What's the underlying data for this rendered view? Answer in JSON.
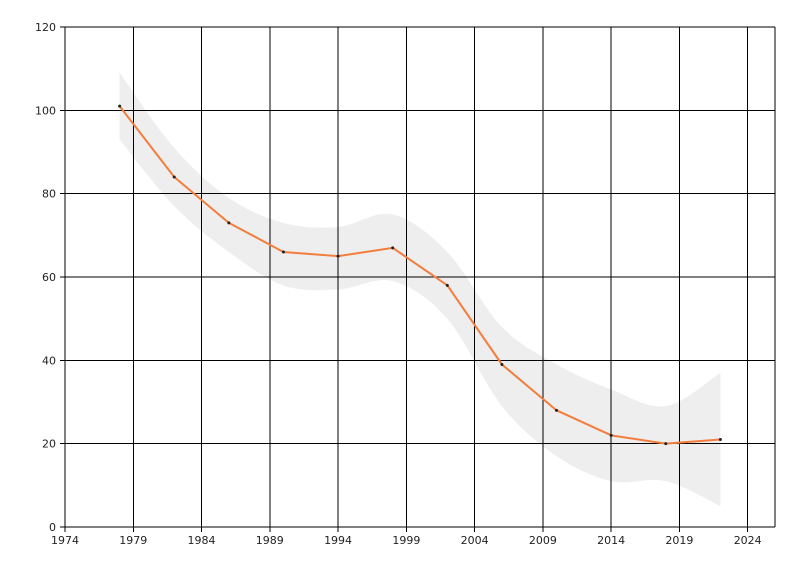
{
  "chart_data": {
    "type": "line",
    "title": "",
    "xlabel": "",
    "ylabel": "",
    "xlim": [
      1974,
      2026
    ],
    "ylim": [
      0,
      120
    ],
    "x_ticks": [
      1974,
      1979,
      1984,
      1989,
      1994,
      1999,
      2004,
      2009,
      2014,
      2019,
      2024
    ],
    "y_ticks": [
      0,
      20,
      40,
      60,
      80,
      100,
      120
    ],
    "grid": true,
    "legend": "none",
    "series": [
      {
        "color": "#f47d3c",
        "points": [
          {
            "x": 1978,
            "y": 101
          },
          {
            "x": 1982,
            "y": 84
          },
          {
            "x": 1986,
            "y": 73
          },
          {
            "x": 1990,
            "y": 66
          },
          {
            "x": 1994,
            "y": 65
          },
          {
            "x": 1998,
            "y": 67
          },
          {
            "x": 2002,
            "y": 58
          },
          {
            "x": 2006,
            "y": 39
          },
          {
            "x": 2010,
            "y": 28
          },
          {
            "x": 2014,
            "y": 22
          },
          {
            "x": 2018,
            "y": 20
          },
          {
            "x": 2022,
            "y": 21
          }
        ]
      }
    ],
    "band": {
      "color": "#eeeeee",
      "x": [
        1978,
        1982,
        1986,
        1990,
        1994,
        1998,
        2002,
        2006,
        2010,
        2014,
        2018,
        2022
      ],
      "upper": [
        109,
        91,
        79,
        73,
        72,
        75,
        66,
        48,
        39,
        33,
        29,
        37
      ],
      "lower": [
        93,
        77,
        66,
        58,
        57,
        59,
        50,
        29,
        17,
        11,
        11,
        5
      ]
    },
    "point_marker_color": "#222222"
  }
}
